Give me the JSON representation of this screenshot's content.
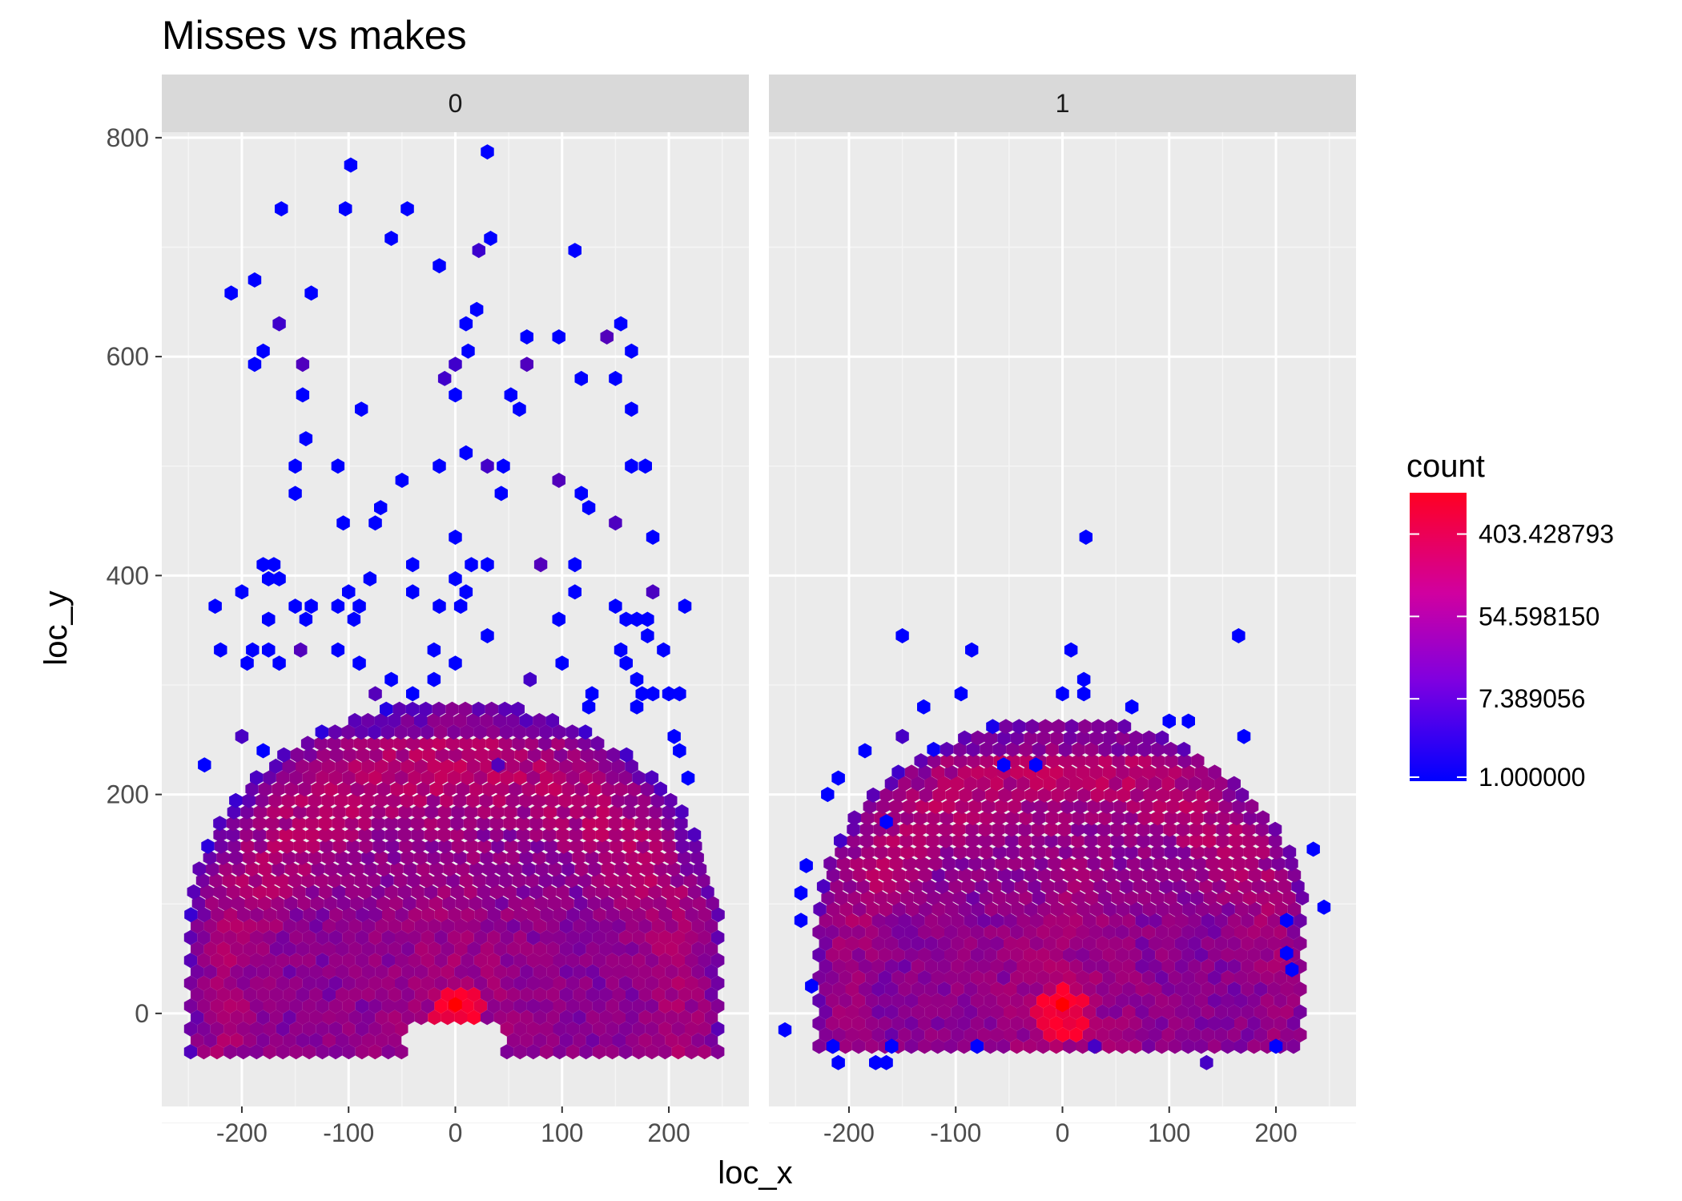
{
  "chart_data": {
    "type": "hexbin",
    "title": "Misses vs makes",
    "xlabel": "loc_x",
    "ylabel": "loc_y",
    "xlim": [
      -275,
      275
    ],
    "ylim": [
      -85,
      805
    ],
    "x_ticks": [
      -200,
      -100,
      0,
      100,
      200
    ],
    "x_tick_labels": [
      "-200",
      "-100",
      "0",
      "100",
      "200"
    ],
    "y_ticks": [
      0,
      200,
      400,
      600,
      800
    ],
    "y_tick_labels": [
      "0",
      "200",
      "400",
      "600",
      "800"
    ],
    "grid": true,
    "facets": [
      {
        "label": "0",
        "bulk": {
          "max_radius": 248,
          "y_top": 285,
          "y_bottom": -35
        },
        "outliers": [
          [
            30,
            787
          ],
          [
            -98,
            775
          ],
          [
            -163,
            735
          ],
          [
            -103,
            735
          ],
          [
            -45,
            735
          ],
          [
            112,
            697
          ],
          [
            33,
            708
          ],
          [
            -60,
            708
          ],
          [
            22,
            697
          ],
          [
            -15,
            683
          ],
          [
            -188,
            670
          ],
          [
            -210,
            658
          ],
          [
            -135,
            658
          ],
          [
            20,
            643
          ],
          [
            10,
            630
          ],
          [
            155,
            630
          ],
          [
            -165,
            630
          ],
          [
            142,
            618
          ],
          [
            97,
            618
          ],
          [
            67,
            618
          ],
          [
            -180,
            605
          ],
          [
            12,
            605
          ],
          [
            165,
            605
          ],
          [
            -188,
            593
          ],
          [
            -143,
            593
          ],
          [
            0,
            593
          ],
          [
            67,
            593
          ],
          [
            -10,
            580
          ],
          [
            118,
            580
          ],
          [
            150,
            580
          ],
          [
            -143,
            565
          ],
          [
            0,
            565
          ],
          [
            52,
            565
          ],
          [
            60,
            552
          ],
          [
            -88,
            552
          ],
          [
            165,
            552
          ],
          [
            -140,
            525
          ],
          [
            10,
            512
          ],
          [
            -150,
            500
          ],
          [
            -110,
            500
          ],
          [
            -15,
            500
          ],
          [
            30,
            500
          ],
          [
            45,
            500
          ],
          [
            165,
            500
          ],
          [
            178,
            500
          ],
          [
            -50,
            487
          ],
          [
            97,
            487
          ],
          [
            -150,
            475
          ],
          [
            43,
            475
          ],
          [
            118,
            475
          ],
          [
            -70,
            462
          ],
          [
            125,
            462
          ],
          [
            -75,
            448
          ],
          [
            -105,
            448
          ],
          [
            150,
            448
          ],
          [
            0,
            435
          ],
          [
            185,
            435
          ],
          [
            -180,
            410
          ],
          [
            -170,
            410
          ],
          [
            -40,
            410
          ],
          [
            15,
            410
          ],
          [
            30,
            410
          ],
          [
            80,
            410
          ],
          [
            112,
            410
          ],
          [
            -175,
            397
          ],
          [
            -165,
            397
          ],
          [
            -80,
            397
          ],
          [
            0,
            397
          ],
          [
            10,
            385
          ],
          [
            -100,
            385
          ],
          [
            -40,
            385
          ],
          [
            112,
            385
          ],
          [
            185,
            385
          ],
          [
            -200,
            385
          ],
          [
            -225,
            372
          ],
          [
            -110,
            372
          ],
          [
            -90,
            372
          ],
          [
            -150,
            372
          ],
          [
            -135,
            372
          ],
          [
            -140,
            360
          ],
          [
            5,
            372
          ],
          [
            -15,
            372
          ],
          [
            150,
            372
          ],
          [
            215,
            372
          ],
          [
            160,
            360
          ],
          [
            170,
            360
          ],
          [
            180,
            360
          ],
          [
            -175,
            360
          ],
          [
            -95,
            360
          ],
          [
            97,
            360
          ],
          [
            30,
            345
          ],
          [
            180,
            345
          ],
          [
            -175,
            332
          ],
          [
            -220,
            332
          ],
          [
            -145,
            332
          ],
          [
            -110,
            332
          ],
          [
            -190,
            332
          ],
          [
            155,
            332
          ],
          [
            -20,
            332
          ],
          [
            195,
            332
          ],
          [
            0,
            320
          ],
          [
            -195,
            320
          ],
          [
            -165,
            320
          ],
          [
            -90,
            320
          ],
          [
            100,
            320
          ],
          [
            160,
            320
          ],
          [
            70,
            305
          ],
          [
            -60,
            305
          ],
          [
            -20,
            305
          ],
          [
            170,
            305
          ],
          [
            185,
            292
          ],
          [
            200,
            292
          ],
          [
            210,
            292
          ],
          [
            -75,
            292
          ],
          [
            -40,
            292
          ],
          [
            128,
            292
          ],
          [
            175,
            292
          ],
          [
            125,
            280
          ],
          [
            170,
            280
          ],
          [
            205,
            253
          ],
          [
            -200,
            253
          ],
          [
            210,
            240
          ],
          [
            -180,
            240
          ],
          [
            -235,
            227
          ],
          [
            218,
            215
          ],
          [
            40,
            227
          ]
        ]
      },
      {
        "label": "1",
        "bulk": {
          "max_radius": 228,
          "y_top": 270,
          "y_bottom": -30
        },
        "outliers": [
          [
            22,
            435
          ],
          [
            -150,
            345
          ],
          [
            165,
            345
          ],
          [
            -85,
            332
          ],
          [
            8,
            332
          ],
          [
            20,
            305
          ],
          [
            20,
            292
          ],
          [
            0,
            292
          ],
          [
            -95,
            292
          ],
          [
            -130,
            280
          ],
          [
            65,
            280
          ],
          [
            100,
            267
          ],
          [
            118,
            267
          ],
          [
            -150,
            253
          ],
          [
            170,
            253
          ],
          [
            -185,
            240
          ],
          [
            -55,
            227
          ],
          [
            -25,
            227
          ],
          [
            -210,
            215
          ],
          [
            -220,
            200
          ],
          [
            -165,
            175
          ],
          [
            -240,
            135
          ],
          [
            -245,
            110
          ],
          [
            235,
            150
          ],
          [
            245,
            97
          ],
          [
            -245,
            85
          ],
          [
            210,
            85
          ],
          [
            -235,
            25
          ],
          [
            210,
            55
          ],
          [
            215,
            40
          ],
          [
            -260,
            -15
          ],
          [
            -215,
            -30
          ],
          [
            -175,
            -45
          ],
          [
            -165,
            -45
          ],
          [
            135,
            -45
          ],
          [
            200,
            -30
          ],
          [
            30,
            -30
          ],
          [
            -80,
            -30
          ],
          [
            -160,
            -30
          ],
          [
            -210,
            -45
          ]
        ]
      }
    ],
    "legend": {
      "title": "count",
      "placement": "right",
      "labels": [
        "403.428793",
        "54.598150",
        "7.389056",
        "1.000000"
      ],
      "values": [
        403.428793,
        54.59815,
        7.389056,
        1.0
      ],
      "max_value": 1100,
      "low_color": "#0000ff",
      "high_color": "#ff0000"
    }
  }
}
